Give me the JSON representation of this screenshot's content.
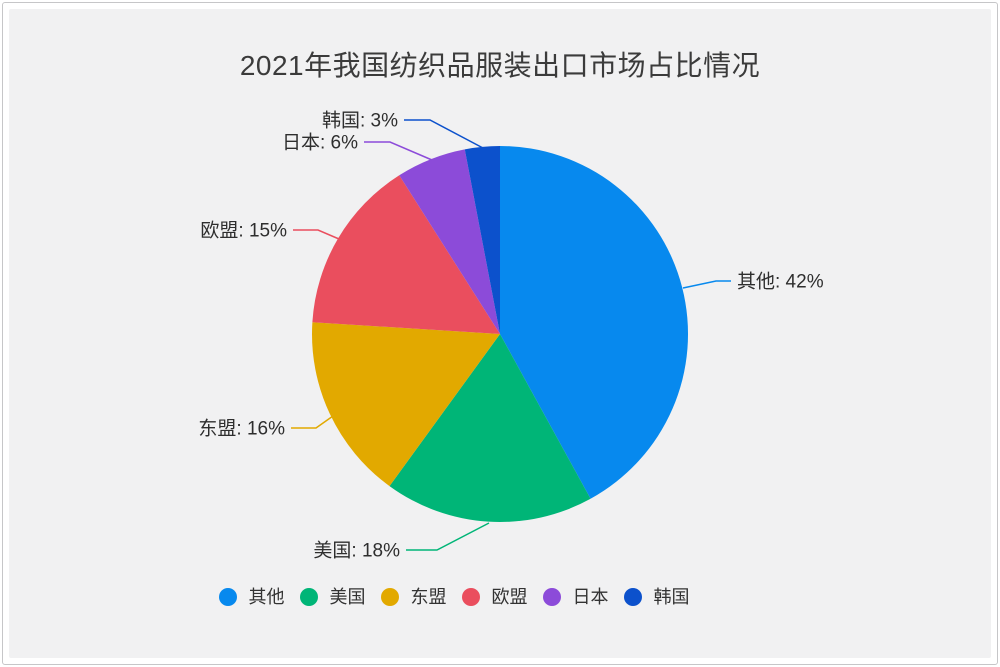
{
  "panel": {
    "background_color": "#f1f1f2",
    "border_color": "#c6c6c8"
  },
  "chart_data": {
    "type": "pie",
    "title": "2021年我国纺织品服装出口市场占比情况",
    "title_color": "#3b3b3b",
    "label_format": "{label}: {value}%",
    "legend_position": "bottom",
    "direction": "clockwise",
    "start_angle": "12-oclock",
    "segments": [
      {
        "key": "other",
        "label": "其他",
        "value": 42,
        "color": "#0789EE"
      },
      {
        "key": "usa",
        "label": "美国",
        "value": 18,
        "color": "#00B577"
      },
      {
        "key": "asean",
        "label": "东盟",
        "value": 16,
        "color": "#E2A900"
      },
      {
        "key": "eu",
        "label": "欧盟",
        "value": 15,
        "color": "#EA4E5E"
      },
      {
        "key": "japan",
        "label": "日本",
        "value": 6,
        "color": "#8C4BD9"
      },
      {
        "key": "korea",
        "label": "韩国",
        "value": 3,
        "color": "#0C51CC"
      }
    ]
  }
}
